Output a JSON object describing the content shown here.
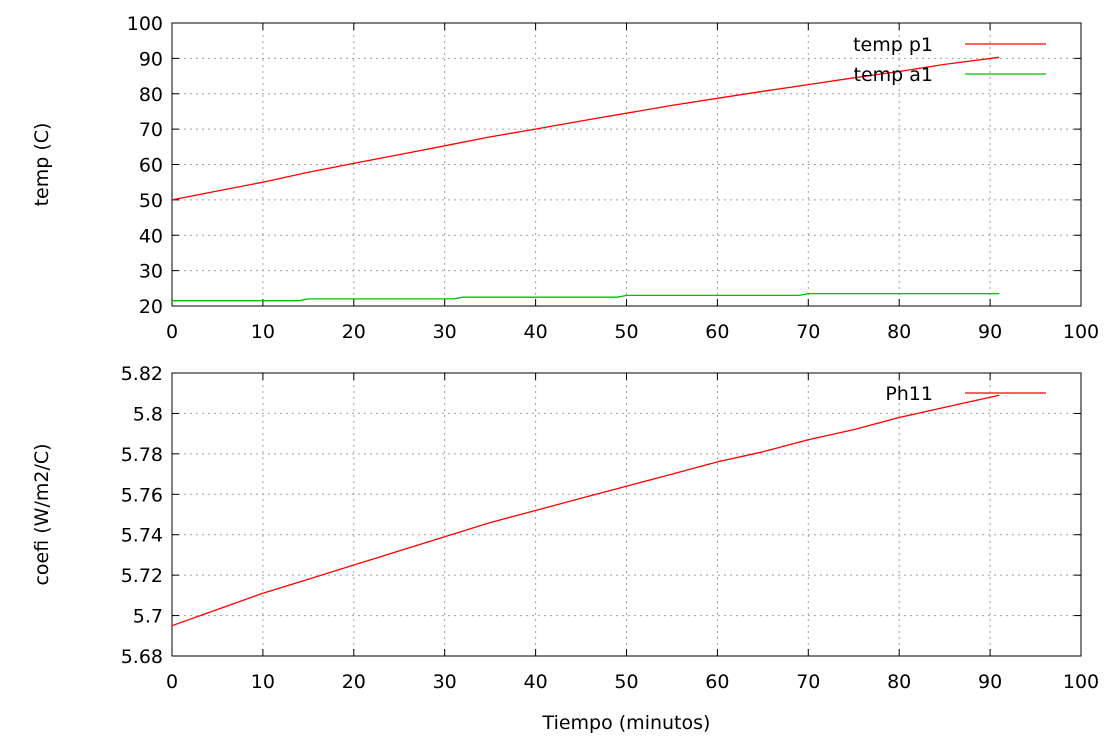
{
  "chart_data": [
    {
      "type": "line",
      "xlabel": "",
      "ylabel": "temp (C)",
      "xlim": [
        0,
        100
      ],
      "ylim": [
        20,
        100
      ],
      "xticks": [
        0,
        10,
        20,
        30,
        40,
        50,
        60,
        70,
        80,
        90,
        100
      ],
      "yticks": [
        20,
        30,
        40,
        50,
        60,
        70,
        80,
        90,
        100
      ],
      "grid": true,
      "legend_position": "top-right",
      "series": [
        {
          "name": "temp p1",
          "color": "#ff0000",
          "x": [
            0,
            5,
            10,
            15,
            20,
            25,
            30,
            35,
            40,
            45,
            50,
            55,
            60,
            65,
            70,
            75,
            80,
            85,
            91
          ],
          "y": [
            50,
            52.5,
            55,
            57.8,
            60.3,
            62.8,
            65.3,
            67.8,
            70,
            72.3,
            74.5,
            76.7,
            78.7,
            80.7,
            82.6,
            84.5,
            86.3,
            88.3,
            90.3
          ]
        },
        {
          "name": "temp a1",
          "color": "#00c000",
          "x": [
            0,
            14,
            15,
            31,
            32,
            49,
            50,
            69,
            70,
            91
          ],
          "y": [
            21.5,
            21.5,
            22,
            22,
            22.5,
            22.5,
            23,
            23,
            23.5,
            23.5
          ]
        }
      ]
    },
    {
      "type": "line",
      "xlabel": "Tiempo (minutos)",
      "ylabel": "coefi (W/m2/C)",
      "xlim": [
        0,
        100
      ],
      "ylim": [
        5.68,
        5.82
      ],
      "xticks": [
        0,
        10,
        20,
        30,
        40,
        50,
        60,
        70,
        80,
        90,
        100
      ],
      "yticks": [
        5.68,
        5.7,
        5.72,
        5.74,
        5.76,
        5.78,
        5.8,
        5.82
      ],
      "ytick_labels": [
        "5.68",
        "5.7",
        "5.72",
        "5.74",
        "5.76",
        "5.78",
        "5.8",
        "5.82"
      ],
      "grid": true,
      "legend_position": "top-right",
      "series": [
        {
          "name": "Ph11",
          "color": "#ff0000",
          "x": [
            0,
            5,
            10,
            15,
            20,
            25,
            30,
            35,
            40,
            45,
            50,
            55,
            60,
            65,
            70,
            75,
            80,
            85,
            91
          ],
          "y": [
            5.695,
            5.703,
            5.711,
            5.718,
            5.725,
            5.732,
            5.739,
            5.746,
            5.752,
            5.758,
            5.764,
            5.77,
            5.776,
            5.781,
            5.787,
            5.792,
            5.798,
            5.803,
            5.809
          ]
        }
      ]
    }
  ]
}
